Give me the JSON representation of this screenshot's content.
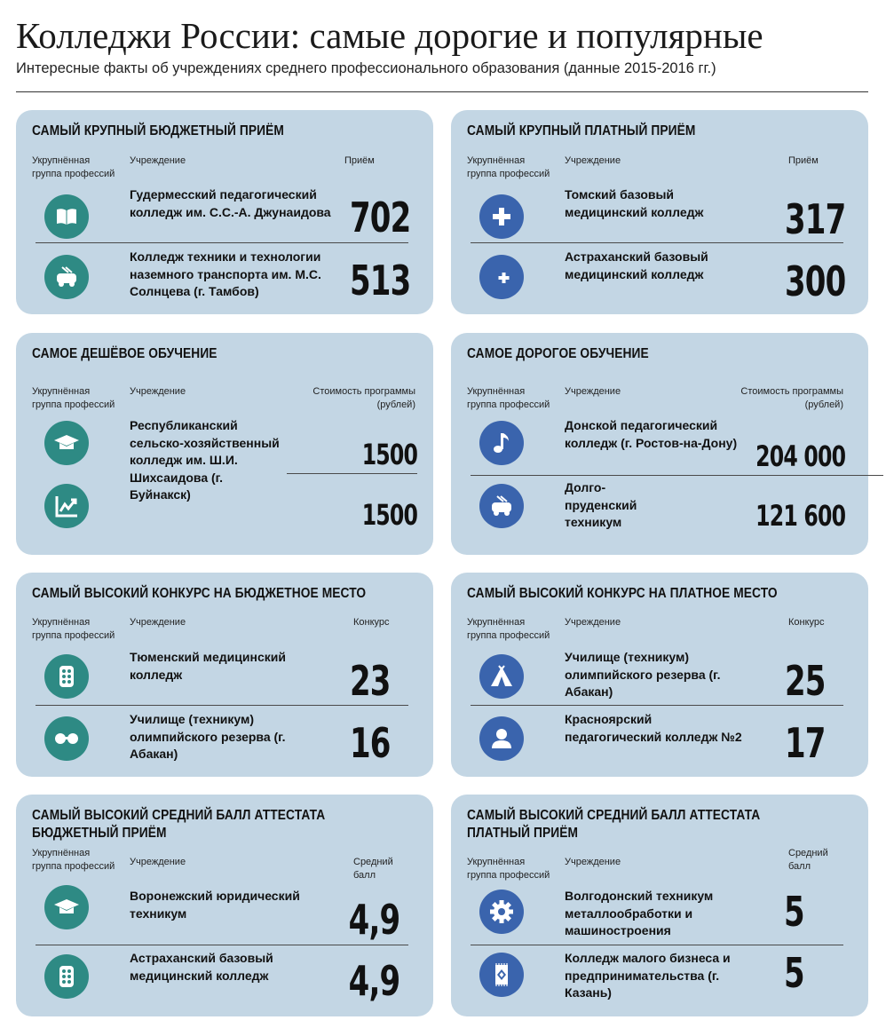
{
  "header": {
    "title": "Колледжи России: самые дорогие и популярные",
    "subtitle": "Интересные факты об учреждениях среднего профессионального образования (данные 2015-2016 гг.)"
  },
  "common": {
    "col_group": "Укрупнённая группа профессий",
    "col_inst": "Учреждение"
  },
  "cards": [
    {
      "title": "САМЫЙ КРУПНЫЙ БЮДЖЕТНЫЙ ПРИЁМ",
      "col_value": "Приём",
      "rows": [
        {
          "icon": "book-icon",
          "institution": "Гудермесский педагогический колледж им. С.С.-А. Джунаидова",
          "value": "702"
        },
        {
          "icon": "trolleybus-icon",
          "institution": "Колледж техники и технологии наземного транспорта им. М.С. Солнцева (г. Тамбов)",
          "value": "513"
        }
      ]
    },
    {
      "title": "САМЫЙ КРУПНЫЙ ПЛАТНЫЙ ПРИЁМ",
      "col_value": "Приём",
      "rows": [
        {
          "icon": "medical-cross-icon",
          "institution": "Томский базовый медицинский колледж",
          "value": "317"
        },
        {
          "icon": "crescent-cross-icon",
          "institution": "Астраханский базовый медицинский колледж",
          "value": "300"
        }
      ]
    },
    {
      "title": "САМОЕ ДЕШЁВОЕ ОБУЧЕНИЕ",
      "col_value": "Стоимость программы (рублей)",
      "institution": "Республиканский сельско-хозяйственный колледж им. Ш.И. Шихсаидова (г. Буйнакск)",
      "rows": [
        {
          "icon": "graduation-cap-icon",
          "value": "1500"
        },
        {
          "icon": "growth-chart-icon",
          "value": "1500"
        }
      ]
    },
    {
      "title": "САМОЕ ДОРОГОЕ ОБУЧЕНИЕ",
      "col_value": "Стоимость программы (рублей)",
      "rows": [
        {
          "icon": "music-note-icon",
          "institution": "Донской педагогический колледж (г. Ростов-на-Дону)",
          "value": "204 000"
        },
        {
          "icon": "trolleybus-icon",
          "institution": "Долго-пруденский техникум",
          "value": "121 600"
        }
      ]
    },
    {
      "title": "САМЫЙ ВЫСОКИЙ КОНКУРС НА БЮДЖЕТНОЕ МЕСТО",
      "col_value": "Конкурс",
      "rows": [
        {
          "icon": "pills-icon",
          "institution": "Тюменский медицинский колледж",
          "value": "23"
        },
        {
          "icon": "glasses-icon",
          "institution": "Училище (техникум) олимпийского резерва (г. Абакан)",
          "value": "16"
        }
      ]
    },
    {
      "title": "САМЫЙ ВЫСОКИЙ КОНКУРС НА ПЛАТНОЕ МЕСТО",
      "col_value": "Конкурс",
      "rows": [
        {
          "icon": "tent-icon",
          "institution": "Училище (техникум) олимпийского резерва (г. Абакан)",
          "value": "25"
        },
        {
          "icon": "person-icon",
          "institution": "Красноярский педагогический колледж №2",
          "value": "17"
        }
      ]
    },
    {
      "title": "САМЫЙ ВЫСОКИЙ СРЕДНИЙ БАЛЛ АТТЕСТАТА БЮДЖЕТНЫЙ ПРИЁМ",
      "col_value": "Средний балл",
      "rows": [
        {
          "icon": "graduation-cap-icon",
          "institution": "Воронежский юридический техникум",
          "value": "4,9"
        },
        {
          "icon": "pills-icon",
          "institution": "Астраханский базовый медицинский колледж",
          "value": "4,9"
        }
      ]
    },
    {
      "title": "САМЫЙ ВЫСОКИЙ СРЕДНИЙ БАЛЛ АТТЕСТАТА ПЛАТНЫЙ ПРИЁМ",
      "col_value": "Средний балл",
      "rows": [
        {
          "icon": "gear-icon",
          "institution": "Волгодонский техникум металлообработки и машиностроения",
          "value": "5"
        },
        {
          "icon": "carpet-icon",
          "institution": "Колледж малого бизнеса и предпринимательства (г. Казань)",
          "value": "5"
        }
      ]
    }
  ]
}
